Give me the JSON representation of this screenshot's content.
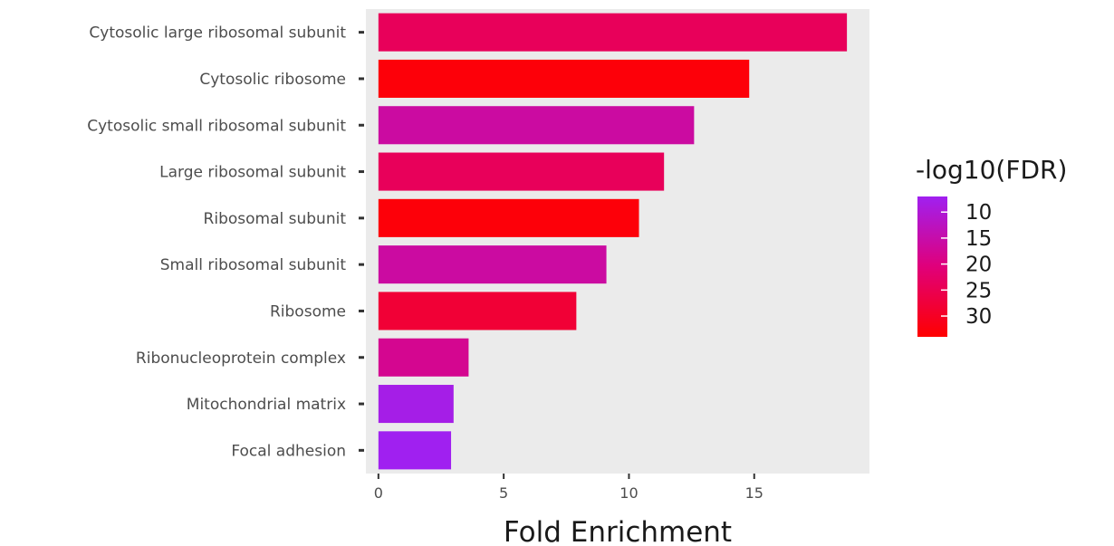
{
  "chart_data": {
    "type": "bar",
    "orientation": "horizontal",
    "categories": [
      "Cytosolic large ribosomal subunit",
      "Cytosolic ribosome",
      "Cytosolic small ribosomal subunit",
      "Large ribosomal subunit",
      "Ribosomal subunit",
      "Small ribosomal subunit",
      "Ribosome",
      "Ribonucleoprotein complex",
      "Mitochondrial matrix",
      "Focal adhesion"
    ],
    "values": [
      18.7,
      14.8,
      12.6,
      11.4,
      10.4,
      9.1,
      7.9,
      3.6,
      3.0,
      2.9
    ],
    "color_values": [
      24,
      33,
      16,
      24,
      33,
      16,
      28,
      18,
      8,
      7
    ],
    "xlabel": "Fold Enrichment",
    "ylabel": "",
    "xlim": [
      -0.5,
      19.6
    ],
    "xticks": [
      0,
      5,
      10,
      15
    ],
    "legend": {
      "title": "-log10(FDR)",
      "ticks": [
        10,
        15,
        20,
        25,
        30
      ],
      "range": [
        7,
        34
      ],
      "low_color": "#a020f0",
      "high_color": "#ff0000",
      "placement": "right"
    },
    "panel_background": "#ebebeb",
    "grid": false
  }
}
